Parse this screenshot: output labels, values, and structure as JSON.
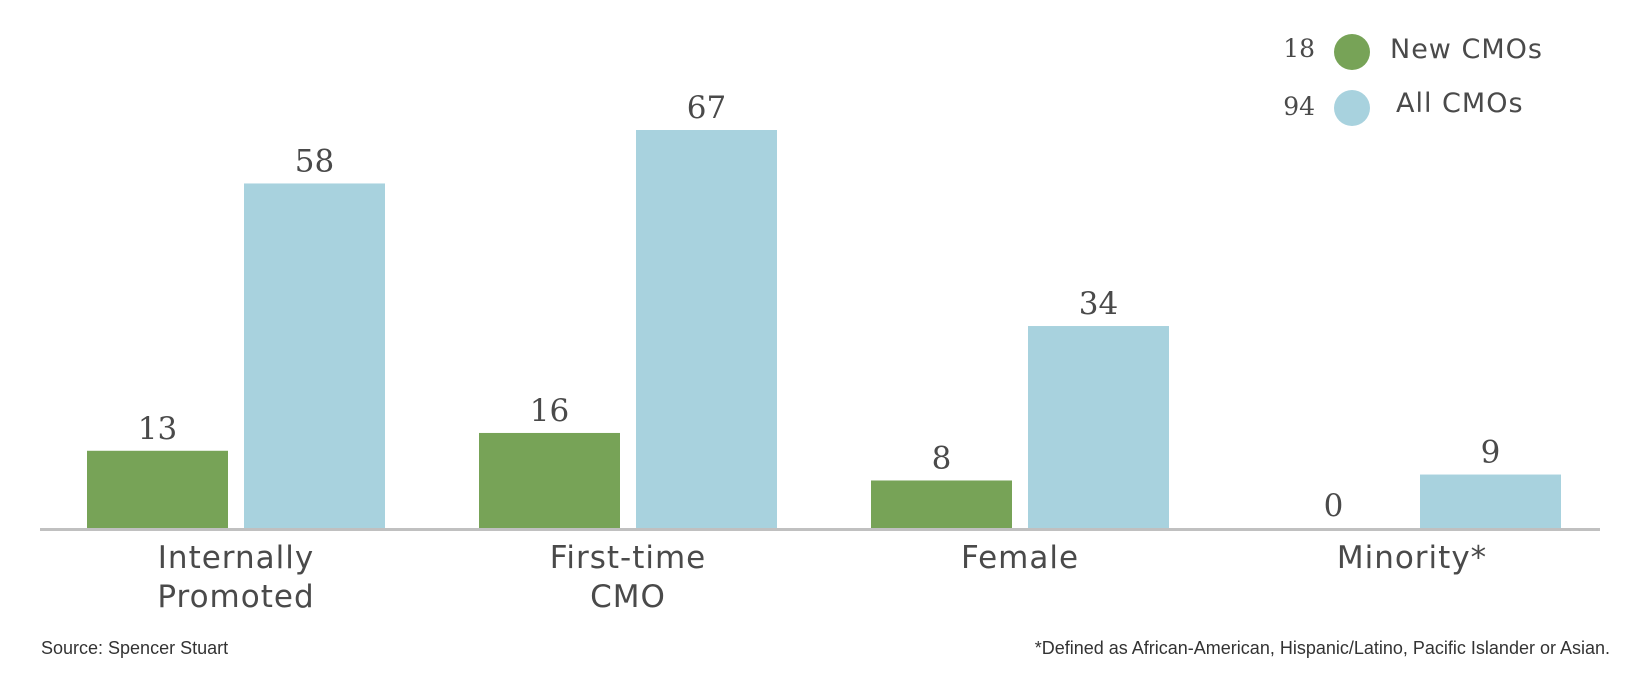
{
  "colors": {
    "new_cmos": "#77a357",
    "all_cmos": "#a8d2de",
    "axis": "#c0c0c0",
    "text": "#4a4a4a"
  },
  "legend": [
    {
      "count": "18",
      "label": "New CMOs",
      "color": "#77a357"
    },
    {
      "count": "94",
      "label": "All CMOs",
      "color": "#a8d2de"
    }
  ],
  "chart_data": {
    "type": "bar",
    "title": "",
    "xlabel": "",
    "ylabel": "",
    "categories": [
      [
        "Internally",
        "Promoted"
      ],
      [
        "First-time",
        "CMO"
      ],
      [
        "Female"
      ],
      [
        "Minority*"
      ]
    ],
    "series": [
      {
        "name": "New CMOs",
        "values": [
          13,
          16,
          8,
          0
        ]
      },
      {
        "name": "All CMOs",
        "values": [
          58,
          67,
          34,
          9
        ]
      }
    ],
    "data_labels": true,
    "legend_position": "top-right",
    "grid": false,
    "ylim": [
      0,
      67
    ]
  },
  "footer": {
    "source": "Source: Spencer Stuart",
    "note": "*Defined as African-American, Hispanic/Latino, Pacific Islander or Asian."
  }
}
